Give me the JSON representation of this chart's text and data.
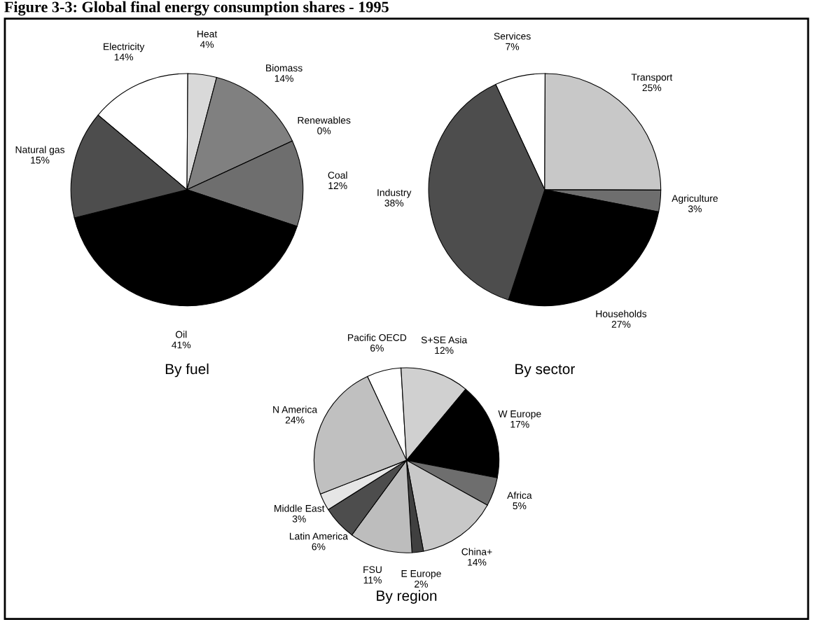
{
  "chart_data": [
    {
      "type": "pie",
      "title": "By fuel",
      "annotations": [
        "Figure 3-3: Global final energy consumption shares - 1995"
      ],
      "categories": [
        "Electricity",
        "Heat",
        "Biomass",
        "Renewables",
        "Coal",
        "Oil",
        "Natural gas"
      ],
      "values": [
        14,
        4,
        14,
        0,
        12,
        41,
        15
      ],
      "value_labels": [
        "14%",
        "4%",
        "14%",
        "0%",
        "12%",
        "41%",
        "15%"
      ],
      "colors": [
        "#ffffff",
        "#d9d9d9",
        "#808080",
        "#9a9a9a",
        "#6e6e6e",
        "#000000",
        "#4d4d4d"
      ]
    },
    {
      "type": "pie",
      "title": "By sector",
      "categories": [
        "Services",
        "Transport",
        "Agriculture",
        "Households",
        "Industry"
      ],
      "values": [
        7,
        25,
        3,
        27,
        38
      ],
      "value_labels": [
        "7%",
        "25%",
        "3%",
        "27%",
        "38%"
      ],
      "colors": [
        "#ffffff",
        "#c8c8c8",
        "#6e6e6e",
        "#000000",
        "#4d4d4d"
      ]
    },
    {
      "type": "pie",
      "title": "By region",
      "categories": [
        "Pacific OECD",
        "S+SE Asia",
        "W Europe",
        "Africa",
        "China+",
        "E Europe",
        "FSU",
        "Latin America",
        "Middle East",
        "N America"
      ],
      "values": [
        6,
        12,
        17,
        5,
        14,
        2,
        11,
        6,
        3,
        24
      ],
      "value_labels": [
        "6%",
        "12%",
        "17%",
        "5%",
        "14%",
        "2%",
        "11%",
        "6%",
        "3%",
        "24%"
      ],
      "colors": [
        "#ffffff",
        "#d0d0d0",
        "#000000",
        "#6e6e6e",
        "#c8c8c8",
        "#404040",
        "#bdbdbd",
        "#4d4d4d",
        "#e6e6e6",
        "#c0c0c0"
      ]
    }
  ]
}
